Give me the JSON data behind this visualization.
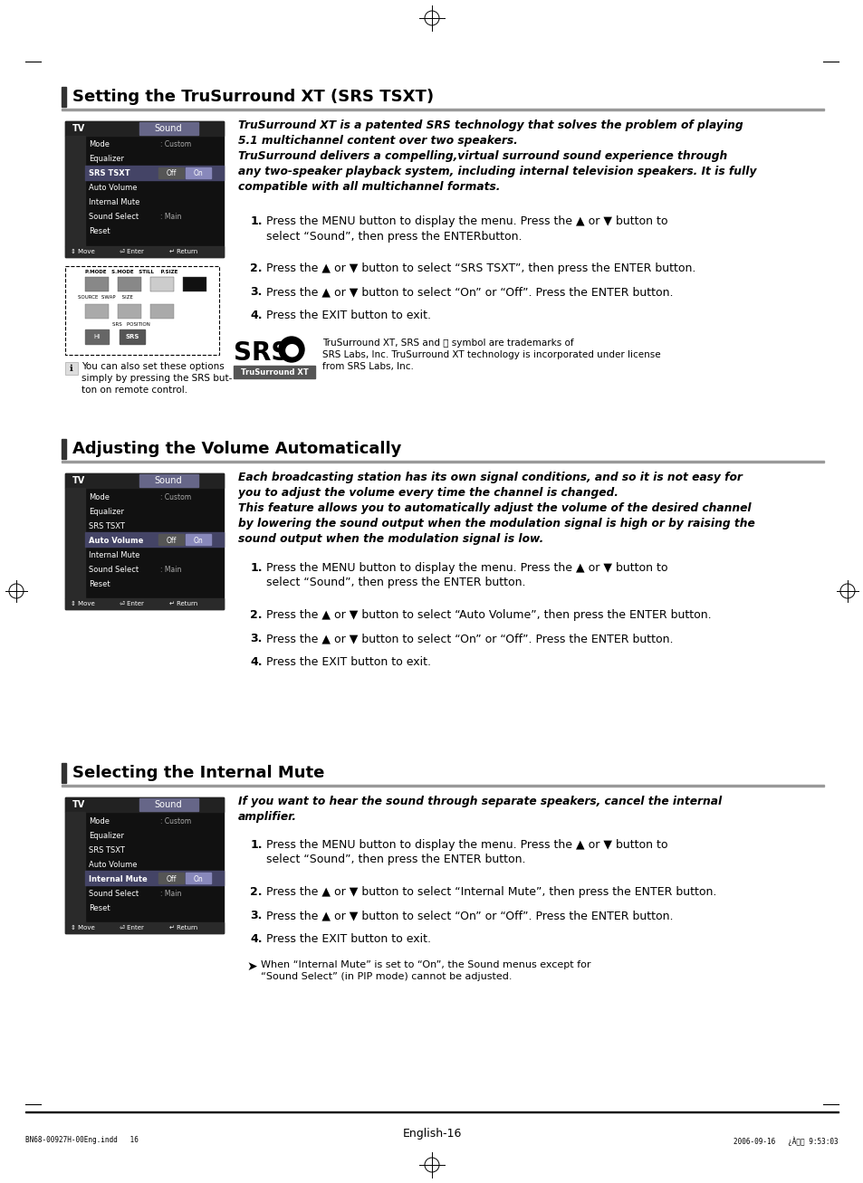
{
  "page_bg": "#ffffff",
  "s1_title": "Setting the TruSurround XT (SRS TSXT)",
  "s2_title": "Adjusting the Volume Automatically",
  "s3_title": "Selecting the Internal Mute",
  "footer": "English-16",
  "print_info_l": "BN68-00927H-00Eng.indd   16",
  "print_info_r": "2006-09-16   ¿À로브 9:53:03",
  "s1_desc": "TruSurround XT is a patented SRS technology that solves the problem of playing\n5.1 multichannel content over two speakers.\nTruSurround delivers a compelling,virtual surround sound experience through\nany two-speaker playback system, including internal television speakers. It is fully\ncompatible with all multichannel formats.",
  "s1_steps": [
    "Press the MENU button to display the menu. Press the ▲ or ▼ button to\nselect “Sound”, then press the ENTERbutton.",
    "Press the ▲ or ▼ button to select “SRS TSXT”, then press the ENTER button.",
    "Press the ▲ or ▼ button to select “On” or “Off”. Press the ENTER button.",
    "Press the EXIT button to exit."
  ],
  "s1_note": "You can also set these options\nsimply by pressing the SRS but-\nton on remote control.",
  "s1_srs": "TruSurround XT, SRS and Ⓢ symbol are trademarks of\nSRS Labs, Inc. TruSurround XT technology is incorporated under license\nfrom SRS Labs, Inc.",
  "s2_desc": "Each broadcasting station has its own signal conditions, and so it is not easy for\nyou to adjust the volume every time the channel is changed.\nThis feature allows you to automatically adjust the volume of the desired channel\nby lowering the sound output when the modulation signal is high or by raising the\nsound output when the modulation signal is low.",
  "s2_steps": [
    "Press the MENU button to display the menu. Press the ▲ or ▼ button to\nselect “Sound”, then press the ENTER button.",
    "Press the ▲ or ▼ button to select “Auto Volume”, then press the ENTER button.",
    "Press the ▲ or ▼ button to select “On” or “Off”. Press the ENTER button.",
    "Press the EXIT button to exit."
  ],
  "s3_desc": "If you want to hear the sound through separate speakers, cancel the internal\namplifier.",
  "s3_steps": [
    "Press the MENU button to display the menu. Press the ▲ or ▼ button to\nselect “Sound”, then press the ENTER button.",
    "Press the ▲ or ▼ button to select “Internal Mute”, then press the ENTER button.",
    "Press the ▲ or ▼ button to select “On” or “Off”. Press the ENTER button.",
    "Press the EXIT button to exit."
  ],
  "s3_note": "When “Internal Mute” is set to “On”, the Sound menus except for\n“Sound Select” (in PIP mode) cannot be adjusted."
}
